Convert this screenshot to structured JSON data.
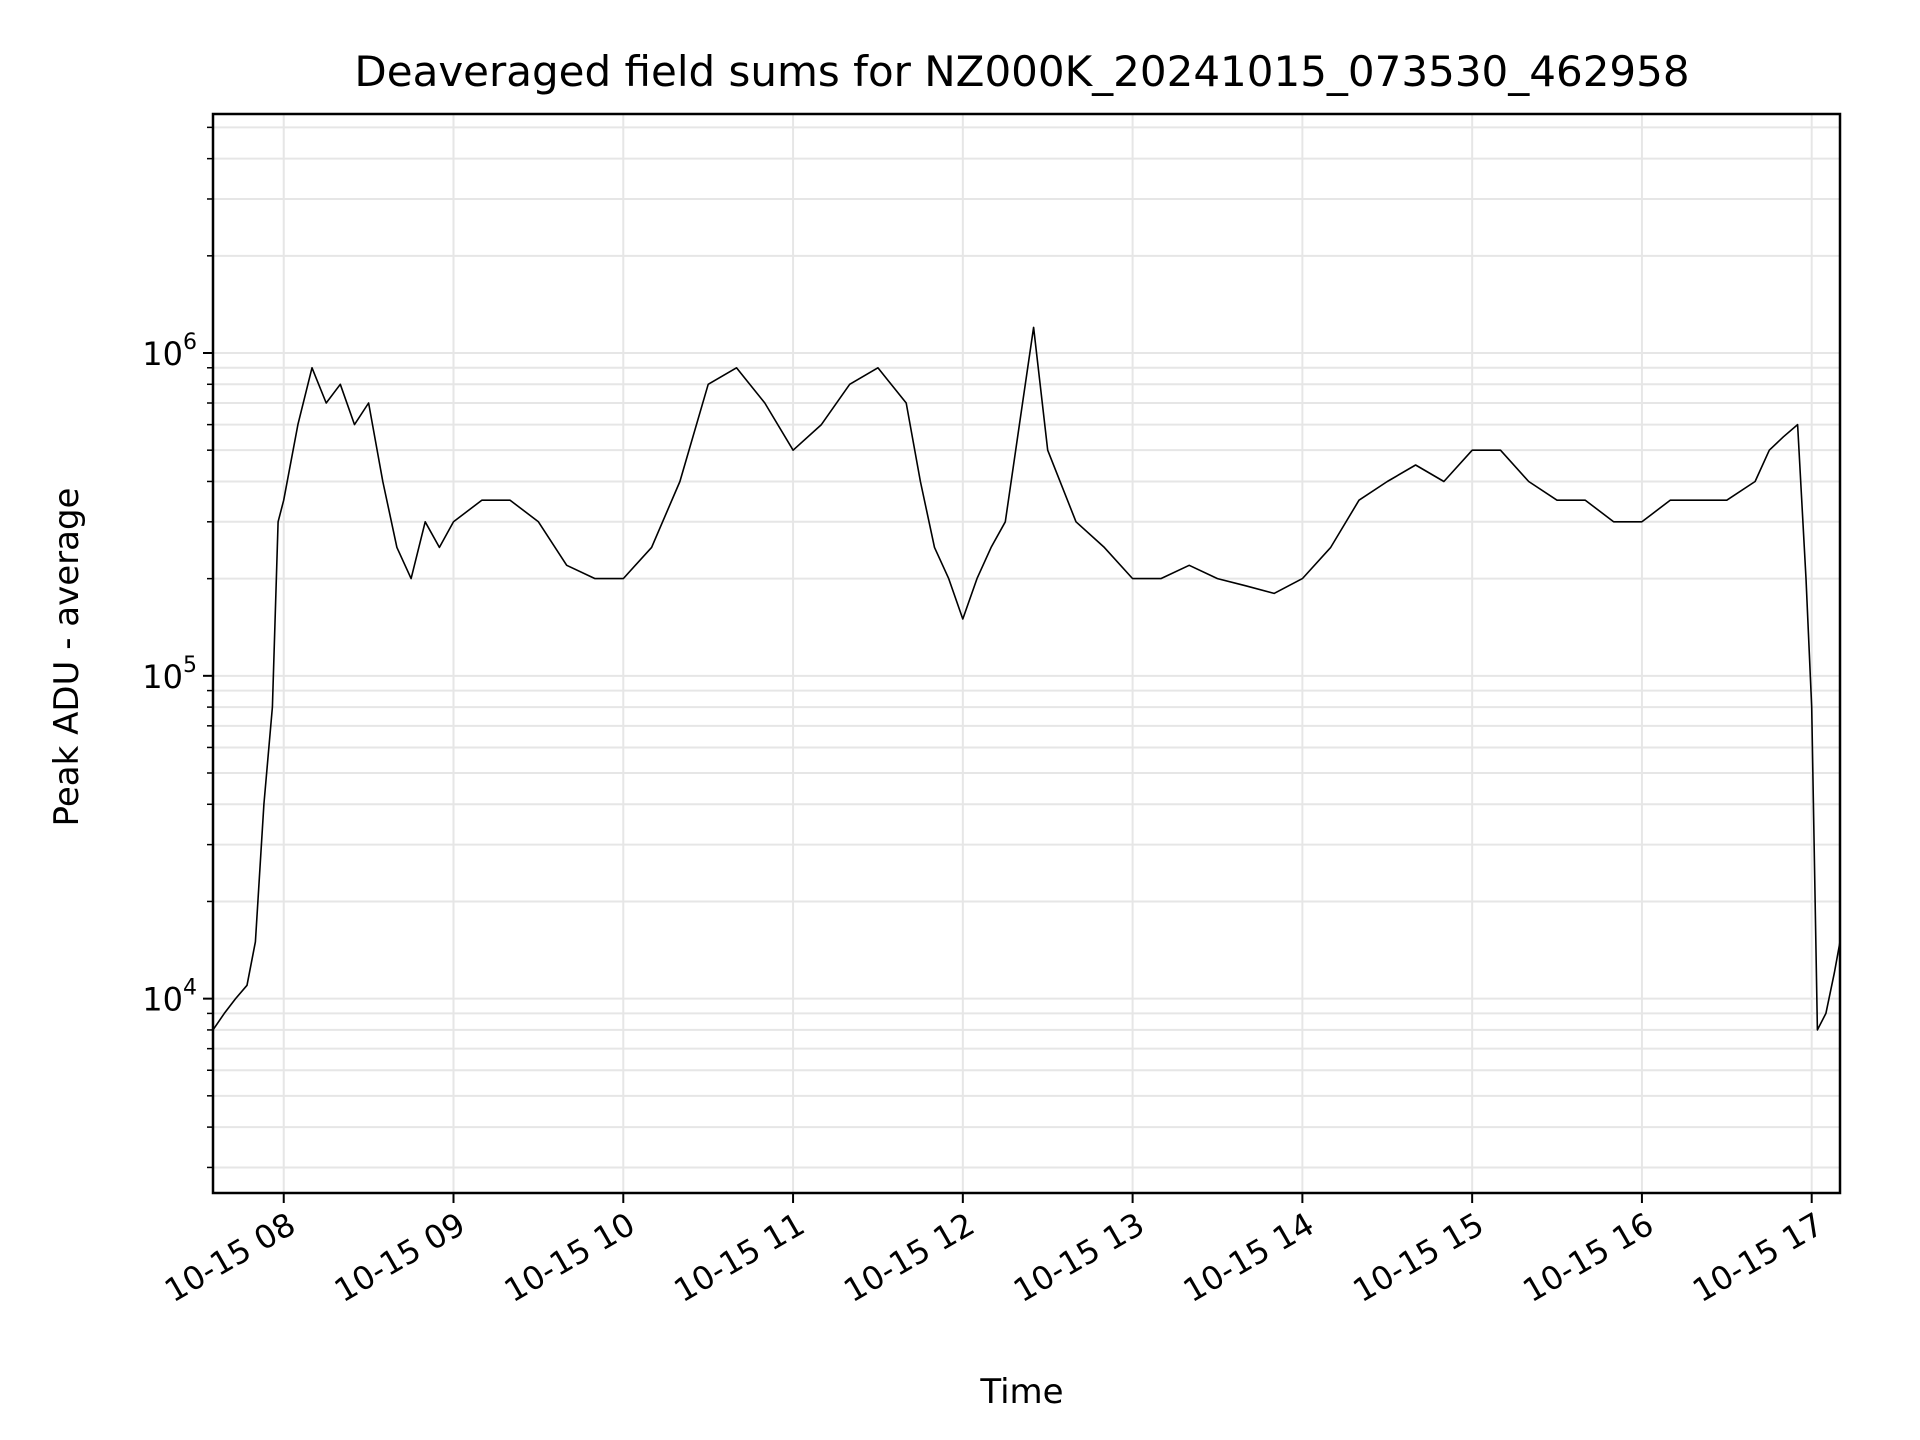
{
  "chart_data": {
    "type": "line",
    "title": "Deaveraged field sums for NZ000K_20241015_073530_462958",
    "xlabel": "Time",
    "ylabel": "Peak ADU - average",
    "yscale": "log",
    "xlim": [
      "2024-10-15 07:35",
      "2024-10-15 17:10"
    ],
    "ylim": [
      2500,
      5500000
    ],
    "grid": true,
    "x_ticks": [
      {
        "value": "2024-10-15 08:00",
        "label": "10-15 08"
      },
      {
        "value": "2024-10-15 09:00",
        "label": "10-15 09"
      },
      {
        "value": "2024-10-15 10:00",
        "label": "10-15 10"
      },
      {
        "value": "2024-10-15 11:00",
        "label": "10-15 11"
      },
      {
        "value": "2024-10-15 12:00",
        "label": "10-15 12"
      },
      {
        "value": "2024-10-15 13:00",
        "label": "10-15 13"
      },
      {
        "value": "2024-10-15 14:00",
        "label": "10-15 14"
      },
      {
        "value": "2024-10-15 15:00",
        "label": "10-15 15"
      },
      {
        "value": "2024-10-15 16:00",
        "label": "10-15 16"
      },
      {
        "value": "2024-10-15 17:00",
        "label": "10-15 17"
      }
    ],
    "y_ticks": [
      {
        "value": 10000,
        "base": "10",
        "exp": "4"
      },
      {
        "value": 100000,
        "base": "10",
        "exp": "5"
      },
      {
        "value": 1000000,
        "base": "10",
        "exp": "6"
      }
    ],
    "line_color": "#000000",
    "grid_color": "#e6e6e6",
    "series": [
      {
        "x": [
          "2024-10-15 07:35",
          "2024-10-15 07:39",
          "2024-10-15 07:43",
          "2024-10-15 07:47",
          "2024-10-15 07:50",
          "2024-10-15 07:53",
          "2024-10-15 07:56",
          "2024-10-15 07:58",
          "2024-10-15 08:00",
          "2024-10-15 08:05",
          "2024-10-15 08:10",
          "2024-10-15 08:15",
          "2024-10-15 08:20",
          "2024-10-15 08:25",
          "2024-10-15 08:30",
          "2024-10-15 08:35",
          "2024-10-15 08:40",
          "2024-10-15 08:45",
          "2024-10-15 08:50",
          "2024-10-15 08:55",
          "2024-10-15 09:00",
          "2024-10-15 09:10",
          "2024-10-15 09:20",
          "2024-10-15 09:30",
          "2024-10-15 09:40",
          "2024-10-15 09:50",
          "2024-10-15 10:00",
          "2024-10-15 10:10",
          "2024-10-15 10:20",
          "2024-10-15 10:30",
          "2024-10-15 10:40",
          "2024-10-15 10:50",
          "2024-10-15 11:00",
          "2024-10-15 11:10",
          "2024-10-15 11:20",
          "2024-10-15 11:30",
          "2024-10-15 11:40",
          "2024-10-15 11:45",
          "2024-10-15 11:50",
          "2024-10-15 11:55",
          "2024-10-15 12:00",
          "2024-10-15 12:05",
          "2024-10-15 12:10",
          "2024-10-15 12:15",
          "2024-10-15 12:20",
          "2024-10-15 12:25",
          "2024-10-15 12:30",
          "2024-10-15 12:40",
          "2024-10-15 12:50",
          "2024-10-15 13:00",
          "2024-10-15 13:10",
          "2024-10-15 13:20",
          "2024-10-15 13:30",
          "2024-10-15 13:40",
          "2024-10-15 13:50",
          "2024-10-15 14:00",
          "2024-10-15 14:10",
          "2024-10-15 14:20",
          "2024-10-15 14:30",
          "2024-10-15 14:40",
          "2024-10-15 14:50",
          "2024-10-15 15:00",
          "2024-10-15 15:10",
          "2024-10-15 15:20",
          "2024-10-15 15:30",
          "2024-10-15 15:40",
          "2024-10-15 15:50",
          "2024-10-15 16:00",
          "2024-10-15 16:10",
          "2024-10-15 16:20",
          "2024-10-15 16:30",
          "2024-10-15 16:40",
          "2024-10-15 16:45",
          "2024-10-15 16:50",
          "2024-10-15 16:55",
          "2024-10-15 16:58",
          "2024-10-15 17:00",
          "2024-10-15 17:02",
          "2024-10-15 17:05",
          "2024-10-15 17:08",
          "2024-10-15 17:10"
        ],
        "y": [
          8000,
          9000,
          10000,
          11000,
          15000,
          40000,
          80000,
          300000,
          350000,
          600000,
          900000,
          700000,
          800000,
          600000,
          700000,
          400000,
          250000,
          200000,
          300000,
          250000,
          300000,
          350000,
          350000,
          300000,
          220000,
          200000,
          200000,
          250000,
          400000,
          800000,
          900000,
          700000,
          500000,
          600000,
          800000,
          900000,
          700000,
          400000,
          250000,
          200000,
          150000,
          200000,
          250000,
          300000,
          600000,
          1200000,
          500000,
          300000,
          250000,
          200000,
          200000,
          220000,
          200000,
          190000,
          180000,
          200000,
          250000,
          350000,
          400000,
          450000,
          400000,
          500000,
          500000,
          400000,
          350000,
          350000,
          300000,
          300000,
          350000,
          350000,
          350000,
          400000,
          500000,
          550000,
          600000,
          200000,
          80000,
          8000,
          9000,
          12000,
          15000
        ]
      }
    ]
  }
}
